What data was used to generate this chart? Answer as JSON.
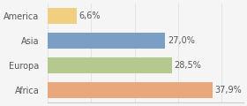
{
  "categories": [
    "America",
    "Asia",
    "Europa",
    "Africa"
  ],
  "values": [
    6.6,
    27.0,
    28.5,
    37.9
  ],
  "labels": [
    "6,6%",
    "27,0%",
    "28,5%",
    "37,9%"
  ],
  "bar_colors": [
    "#f0d080",
    "#7b9ec4",
    "#b5c98e",
    "#e8a87c"
  ],
  "background_color": "#f5f5f5",
  "xlim": [
    0,
    45
  ],
  "label_fontsize": 7.0,
  "tick_fontsize": 7.0
}
